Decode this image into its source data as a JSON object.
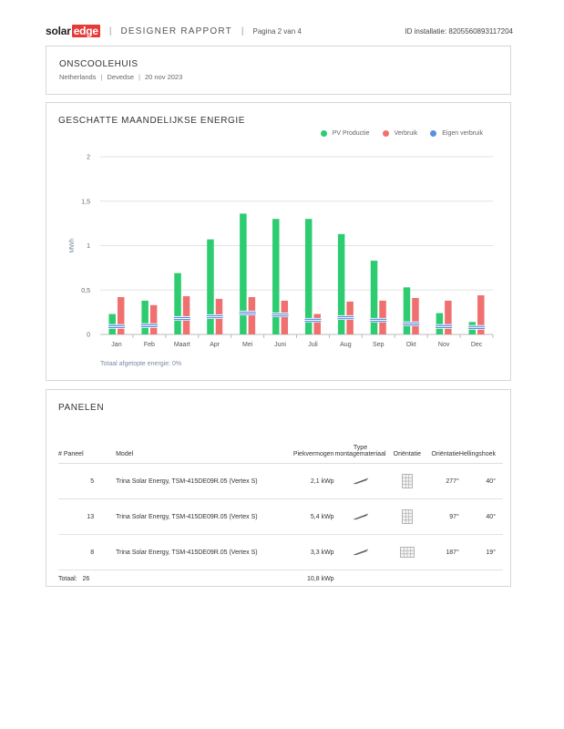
{
  "header": {
    "logo_solar": "solar",
    "logo_edge": "edge",
    "report_title": "DESIGNER RAPPORT",
    "page": "Pagina 2 van 4",
    "install_id": "ID installatie: 8205560893117204"
  },
  "site": {
    "name": "ONSCOOLEHUIS",
    "country": "Netherlands",
    "city": "Devedse",
    "date": "20 nov 2023"
  },
  "energy": {
    "title": "GESCHATTE MAANDELIJKSE ENERGIE",
    "footnote": "Totaal afgetopte energie: 0%"
  },
  "chart_data": {
    "type": "bar",
    "categories": [
      "Jan",
      "Feb",
      "Maart",
      "Apr",
      "Mei",
      "Juni",
      "Juli",
      "Aug",
      "Sep",
      "Okt",
      "Nov",
      "Dec"
    ],
    "series": [
      {
        "name": "PV Productie",
        "color": "#2ecc71",
        "values": [
          0.23,
          0.38,
          0.69,
          1.07,
          1.36,
          1.3,
          1.3,
          1.13,
          0.83,
          0.53,
          0.24,
          0.14
        ]
      },
      {
        "name": "Verbruik",
        "color": "#f07070",
        "values": [
          0.42,
          0.33,
          0.43,
          0.4,
          0.42,
          0.38,
          0.23,
          0.37,
          0.38,
          0.41,
          0.38,
          0.44
        ]
      },
      {
        "name": "Eigen verbruik",
        "color": "#5b8fe0",
        "values": [
          0.09,
          0.1,
          0.18,
          0.2,
          0.24,
          0.22,
          0.16,
          0.19,
          0.16,
          0.12,
          0.09,
          0.08
        ]
      }
    ],
    "ylabel": "MWh",
    "yticks": [
      "0",
      "0,5",
      "1",
      "1,5",
      "2"
    ],
    "ylim": [
      0,
      2
    ],
    "grid": true,
    "legend": "top-right"
  },
  "panels": {
    "title": "PANELEN",
    "headers": {
      "num": "# Paneel",
      "model": "Model",
      "peak": "Piekvermogen",
      "type_line1": "Type",
      "type_line2": "montagemateriaal",
      "orientation": "Oriëntatie",
      "azimuth": "Oriëntatie",
      "tilt": "Hellingshoek"
    },
    "rows": [
      {
        "num": "5",
        "model": "Trina Solar Energy, TSM-415DE09R.05 (Vertex S)",
        "peak": "2,1 kWp",
        "orientation": "portrait",
        "azimuth": "277°",
        "tilt": "40°"
      },
      {
        "num": "13",
        "model": "Trina Solar Energy, TSM-415DE09R.05 (Vertex S)",
        "peak": "5,4 kWp",
        "orientation": "portrait",
        "azimuth": "97°",
        "tilt": "40°"
      },
      {
        "num": "8",
        "model": "Trina Solar Energy, TSM-415DE09R.05 (Vertex S)",
        "peak": "3,3 kWp",
        "orientation": "landscape",
        "azimuth": "187°",
        "tilt": "19°"
      }
    ],
    "total_label": "Totaal:",
    "total_num": "26",
    "total_peak": "10,8 kWp"
  }
}
